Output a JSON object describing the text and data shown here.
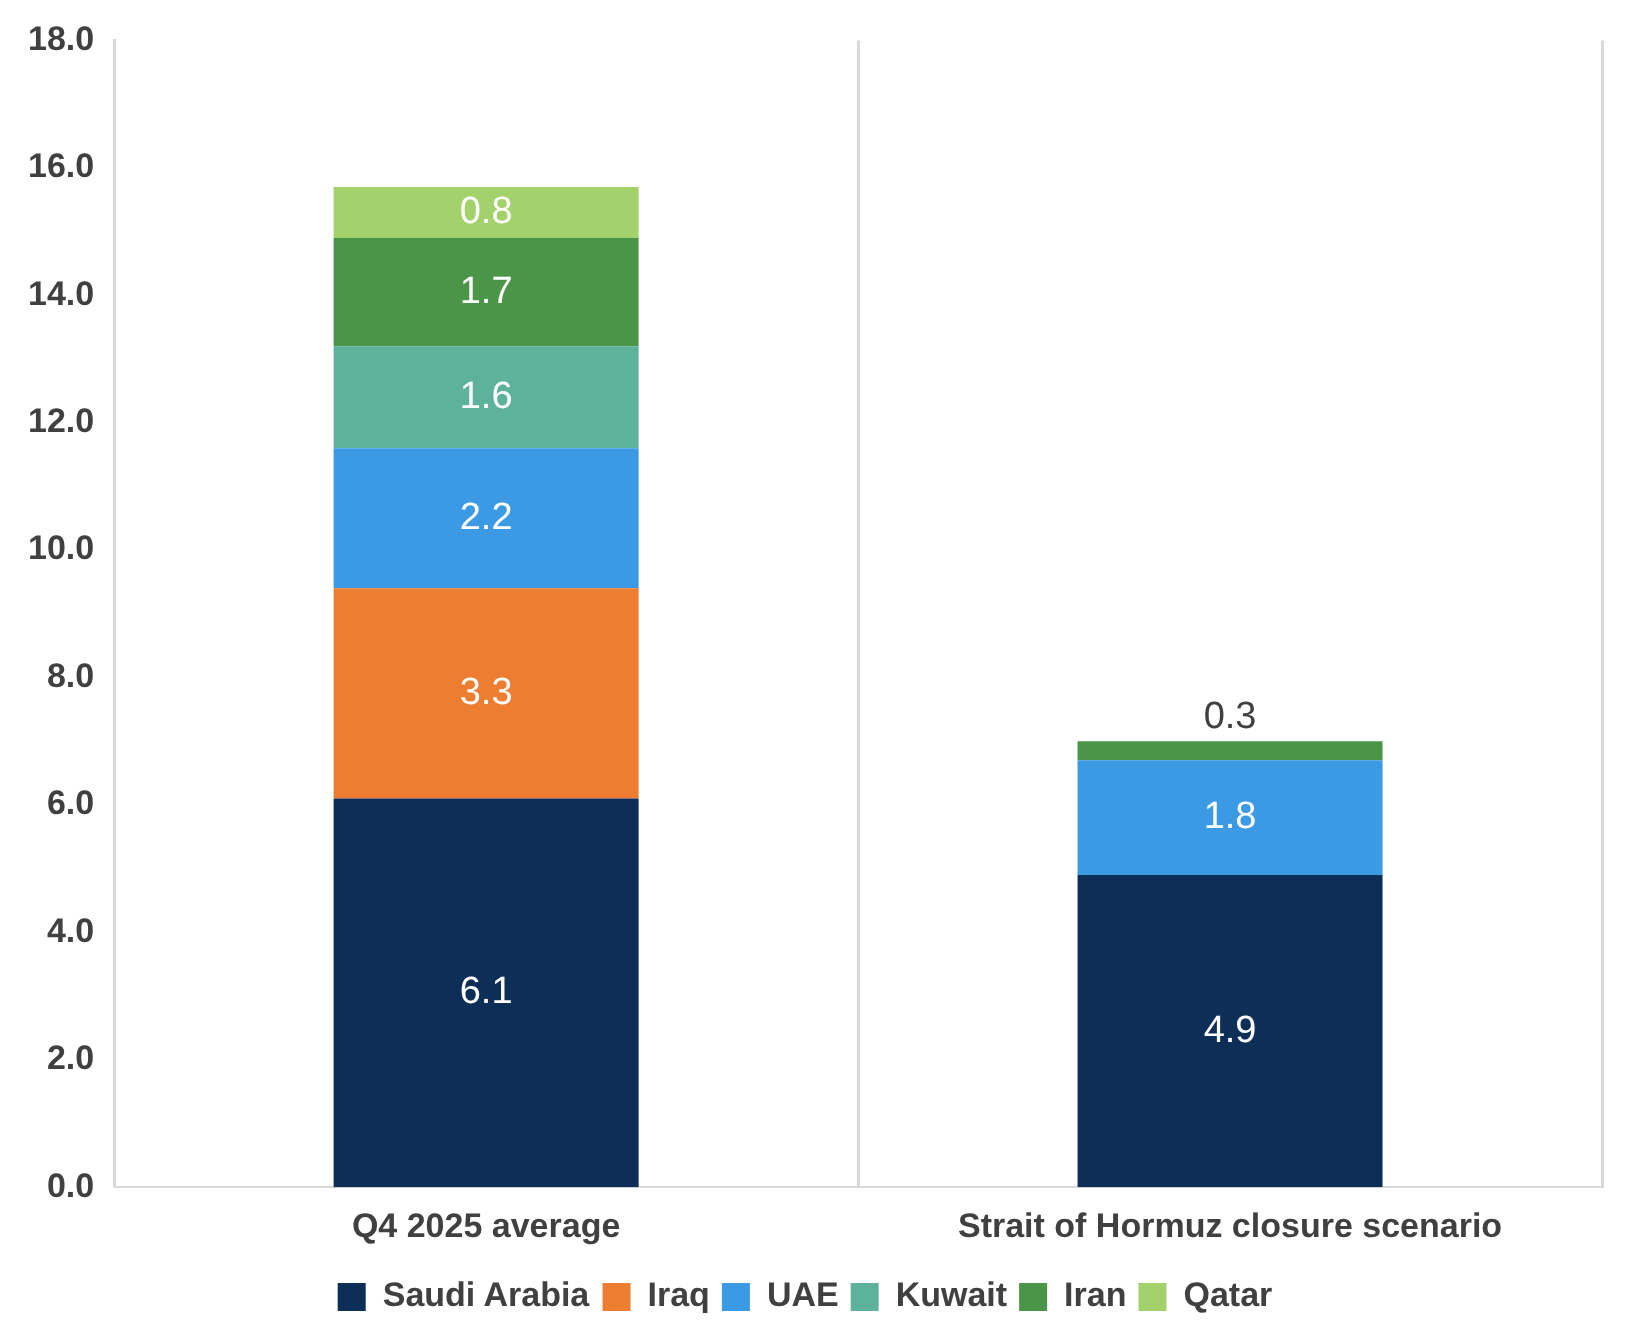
{
  "chart_data": {
    "type": "bar",
    "stacked": true,
    "categories": [
      "Q4 2025 average",
      "Strait of Hormuz closure scenario"
    ],
    "series": [
      {
        "name": "Saudi Arabia",
        "color": "#0d2e57",
        "values": [
          6.1,
          4.9
        ]
      },
      {
        "name": "Iraq",
        "color": "#ed7d31",
        "values": [
          3.3,
          null
        ]
      },
      {
        "name": "UAE",
        "color": "#3c9ae4",
        "values": [
          2.2,
          1.8
        ]
      },
      {
        "name": "Kuwait",
        "color": "#5eb29c",
        "values": [
          1.6,
          null
        ]
      },
      {
        "name": "Iran",
        "color": "#4a9548",
        "values": [
          1.7,
          0.3
        ]
      },
      {
        "name": "Qatar",
        "color": "#a3d16b",
        "values": [
          0.8,
          null
        ]
      }
    ],
    "ylim": [
      0,
      18
    ],
    "yticks": [
      {
        "value": 0,
        "label": "0.0"
      },
      {
        "value": 2,
        "label": "2.0"
      },
      {
        "value": 4,
        "label": "4.0"
      },
      {
        "value": 6,
        "label": "6.0"
      },
      {
        "value": 8,
        "label": "8.0"
      },
      {
        "value": 10,
        "label": "10.0"
      },
      {
        "value": 12,
        "label": "12.0"
      },
      {
        "value": 14,
        "label": "14.0"
      },
      {
        "value": 16,
        "label": "16.0"
      },
      {
        "value": 18,
        "label": "18.0"
      }
    ],
    "grid": "x",
    "legend": "bottom",
    "data_labels": true
  }
}
